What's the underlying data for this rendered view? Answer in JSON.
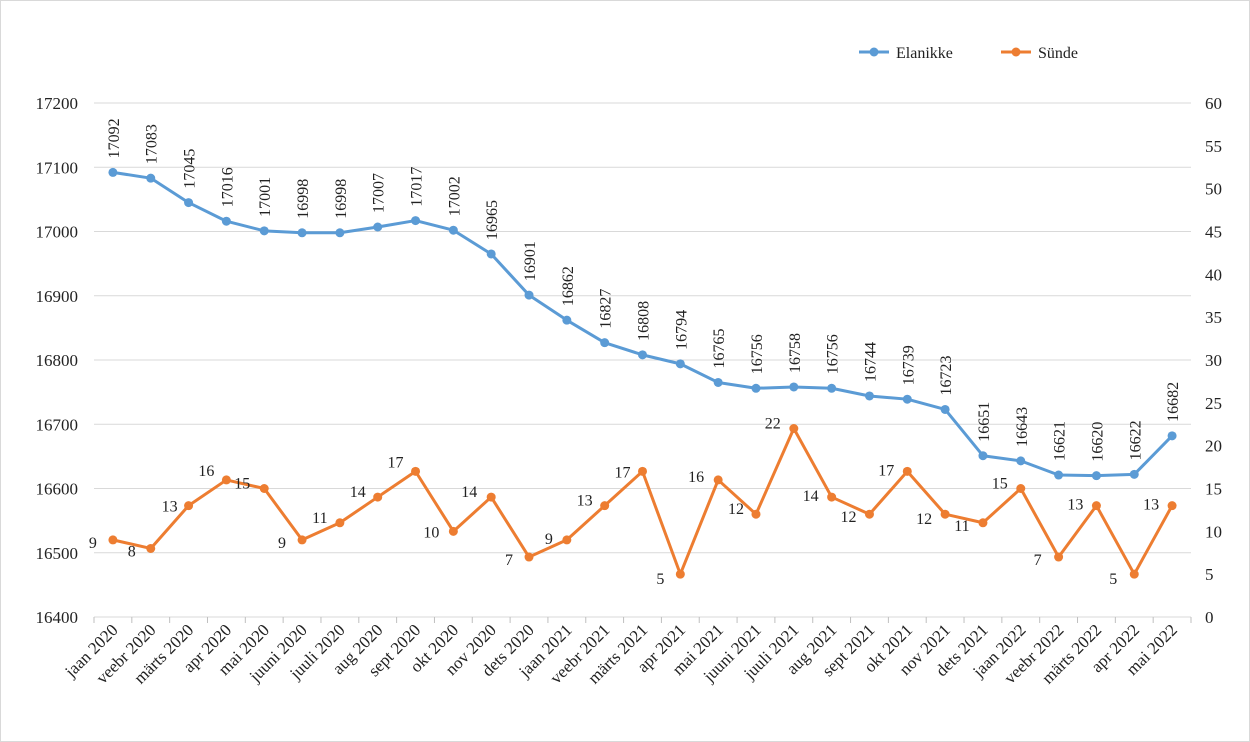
{
  "chart_data": {
    "type": "line",
    "title": "",
    "xlabel": "",
    "ylabel_left": "",
    "ylabel_right": "",
    "categories": [
      "jaan 2020",
      "veebr 2020",
      "märts 2020",
      "apr 2020",
      "mai 2020",
      "juuni 2020",
      "juuli 2020",
      "aug 2020",
      "sept 2020",
      "okt 2020",
      "nov 2020",
      "dets 2020",
      "jaan 2021",
      "veebr 2021",
      "märts 2021",
      "apr 2021",
      "mai 2021",
      "juuni 2021",
      "juuli 2021",
      "aug 2021",
      "sept 2021",
      "okt 2021",
      "nov 2021",
      "dets 2021",
      "jaan 2022",
      "veebr 2022",
      "märts 2022",
      "apr 2022",
      "mai 2022"
    ],
    "y_left": {
      "min": 16400,
      "max": 17200,
      "step": 100
    },
    "y_right": {
      "min": 0,
      "max": 60,
      "step": 5
    },
    "grid": true,
    "legend_position": "top-right",
    "series": [
      {
        "name": "Elanikke",
        "axis": "left",
        "color": "#5b9bd5",
        "values": [
          17092,
          17083,
          17045,
          17016,
          17001,
          16998,
          16998,
          17007,
          17017,
          17002,
          16965,
          16901,
          16862,
          16827,
          16808,
          16794,
          16765,
          16756,
          16758,
          16756,
          16744,
          16739,
          16723,
          16651,
          16643,
          16621,
          16620,
          16622,
          16682
        ]
      },
      {
        "name": "Sünde",
        "axis": "right",
        "color": "#ed7d31",
        "values": [
          9,
          8,
          13,
          16,
          15,
          9,
          11,
          14,
          17,
          10,
          14,
          7,
          9,
          13,
          17,
          5,
          16,
          12,
          22,
          14,
          12,
          17,
          12,
          11,
          15,
          7,
          13,
          5,
          13
        ]
      }
    ]
  }
}
